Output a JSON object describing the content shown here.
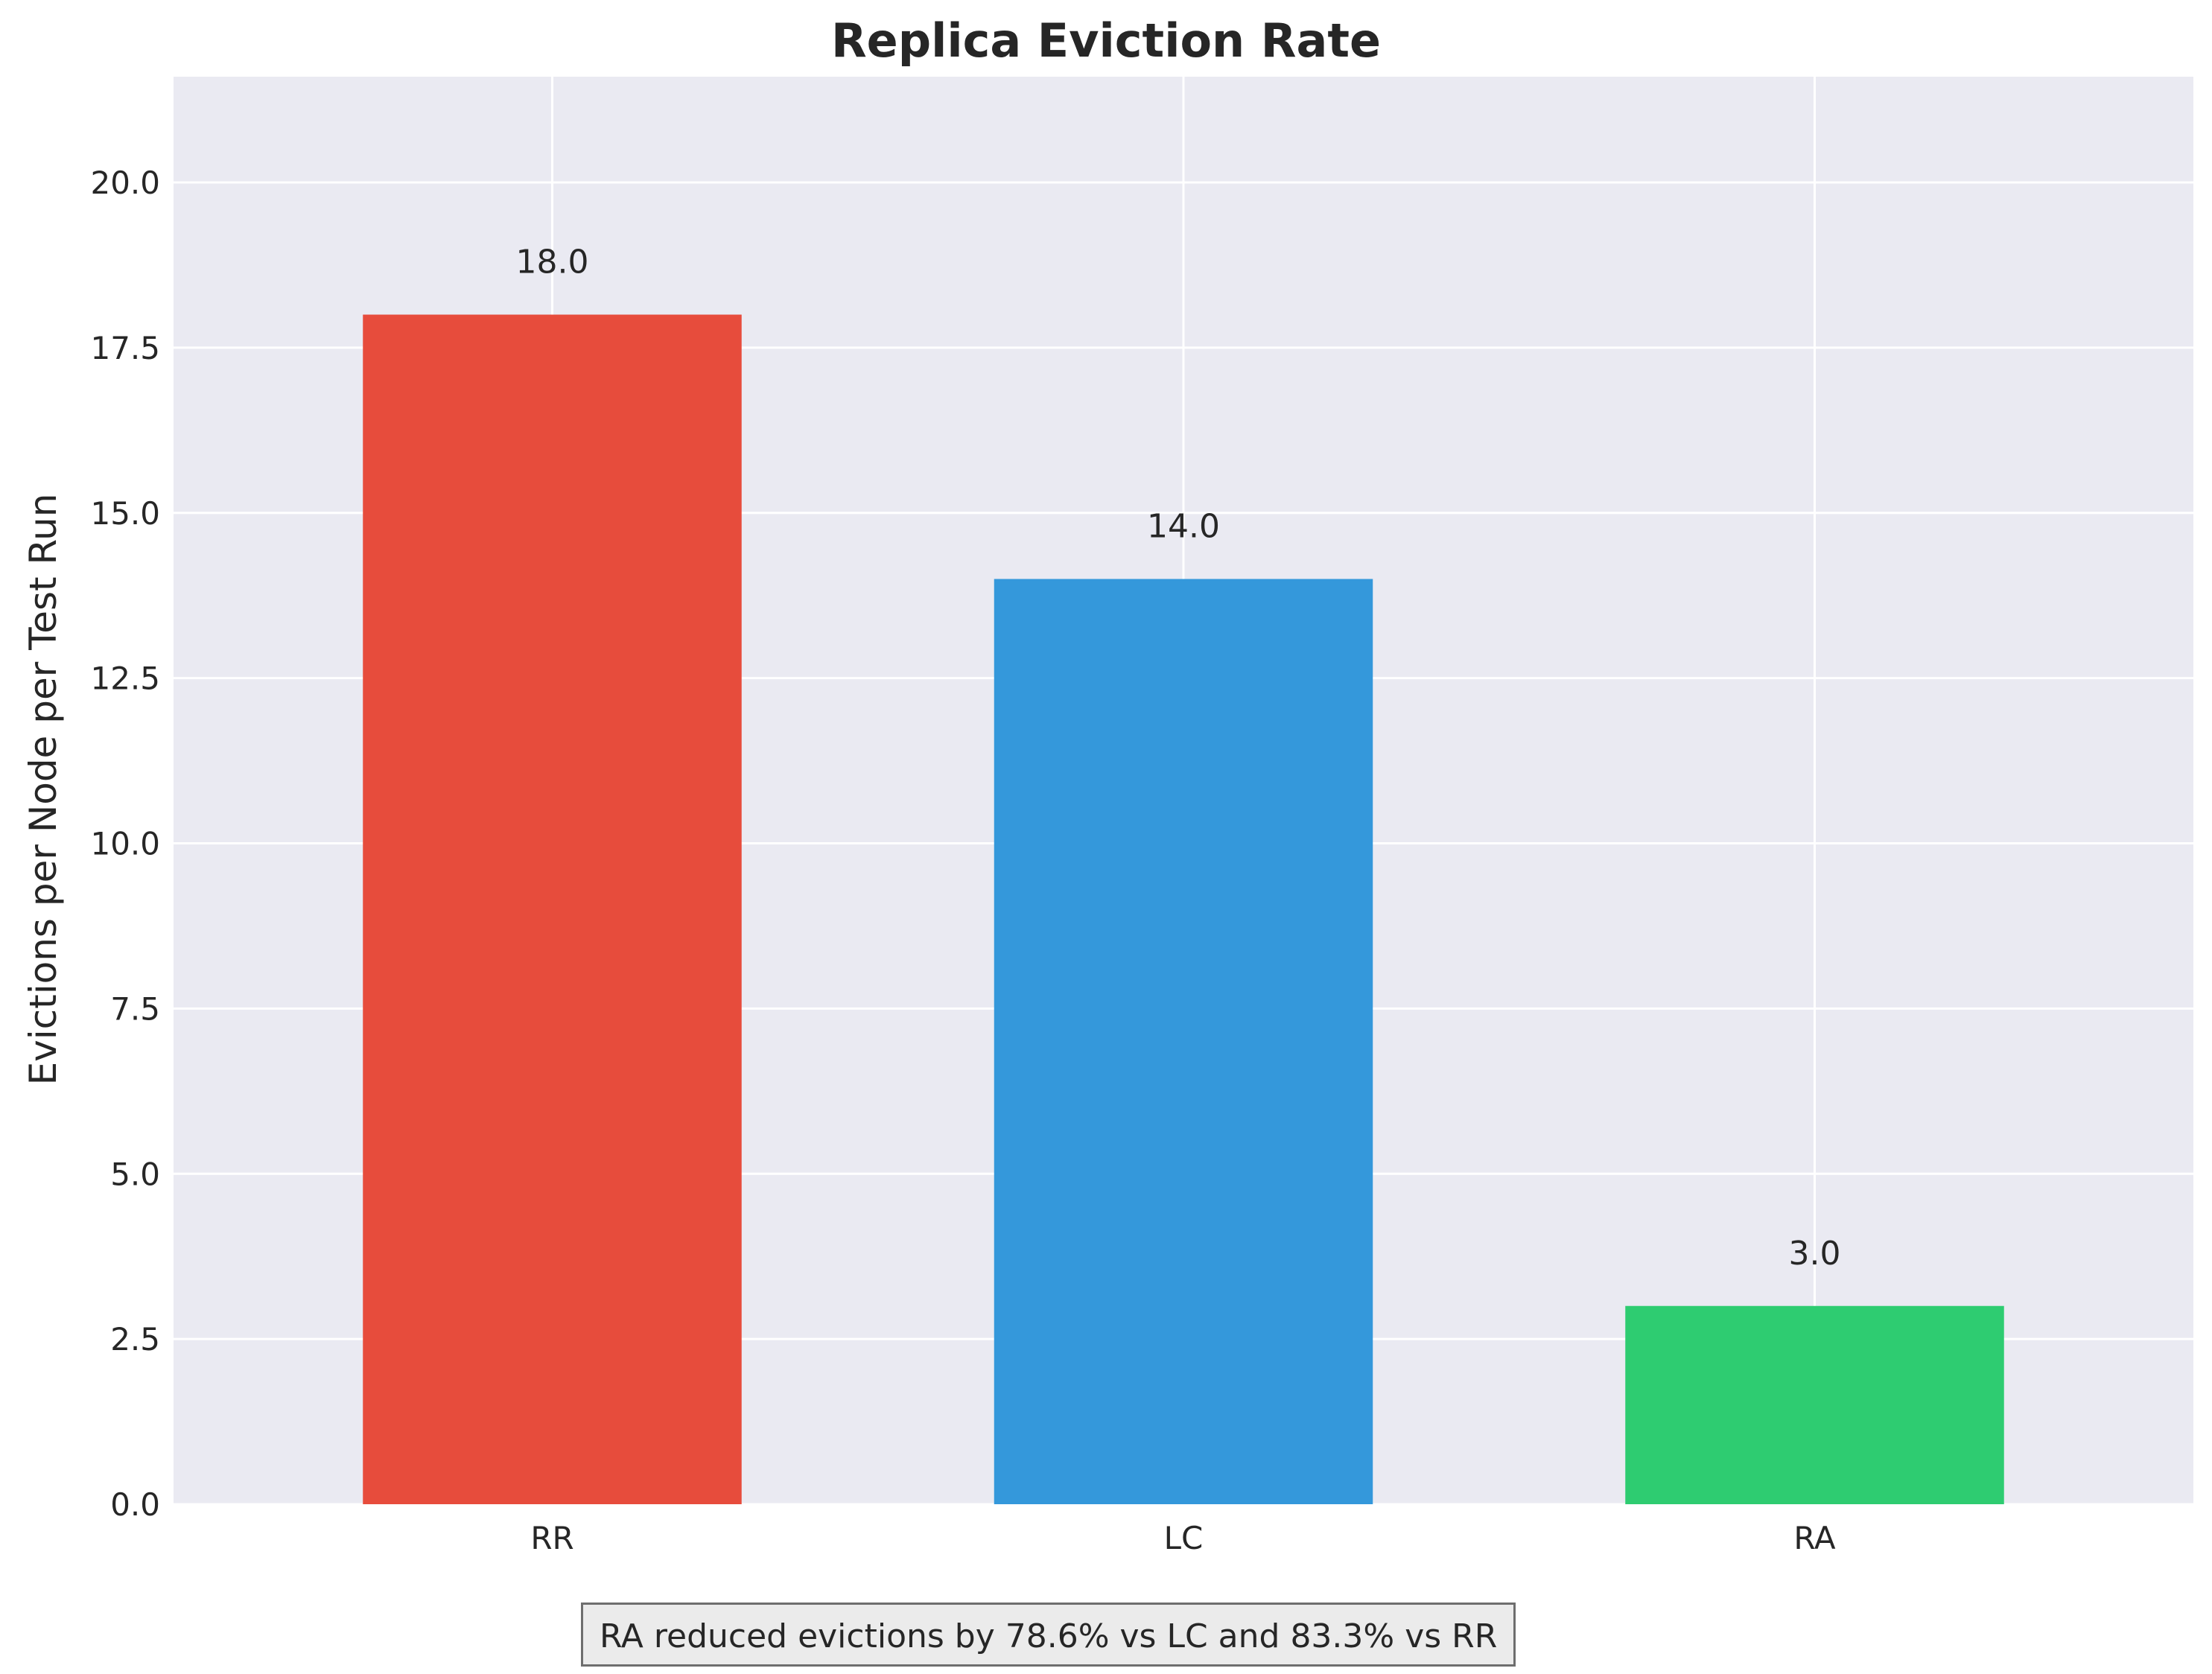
{
  "chart_data": {
    "type": "bar",
    "title": "Replica Eviction Rate",
    "xlabel": "",
    "ylabel": "Evictions per Node per Test Run",
    "categories": [
      "RR",
      "LC",
      "RA"
    ],
    "values": [
      18.0,
      14.0,
      3.0
    ],
    "data_labels": [
      "18.0",
      "14.0",
      "3.0"
    ],
    "colors": [
      "#e74c3c",
      "#3498db",
      "#2ecc71"
    ],
    "ylim": [
      0,
      21.6
    ],
    "yticks": [
      0.0,
      2.5,
      5.0,
      7.5,
      10.0,
      12.5,
      15.0,
      17.5,
      20.0
    ],
    "ytick_labels": [
      "0.0",
      "2.5",
      "5.0",
      "7.5",
      "10.0",
      "12.5",
      "15.0",
      "17.5",
      "20.0"
    ],
    "grid": true,
    "background": "#eaeaf2",
    "annotation": "RA reduced evictions by 78.6% vs LC and 83.3% vs RR"
  }
}
